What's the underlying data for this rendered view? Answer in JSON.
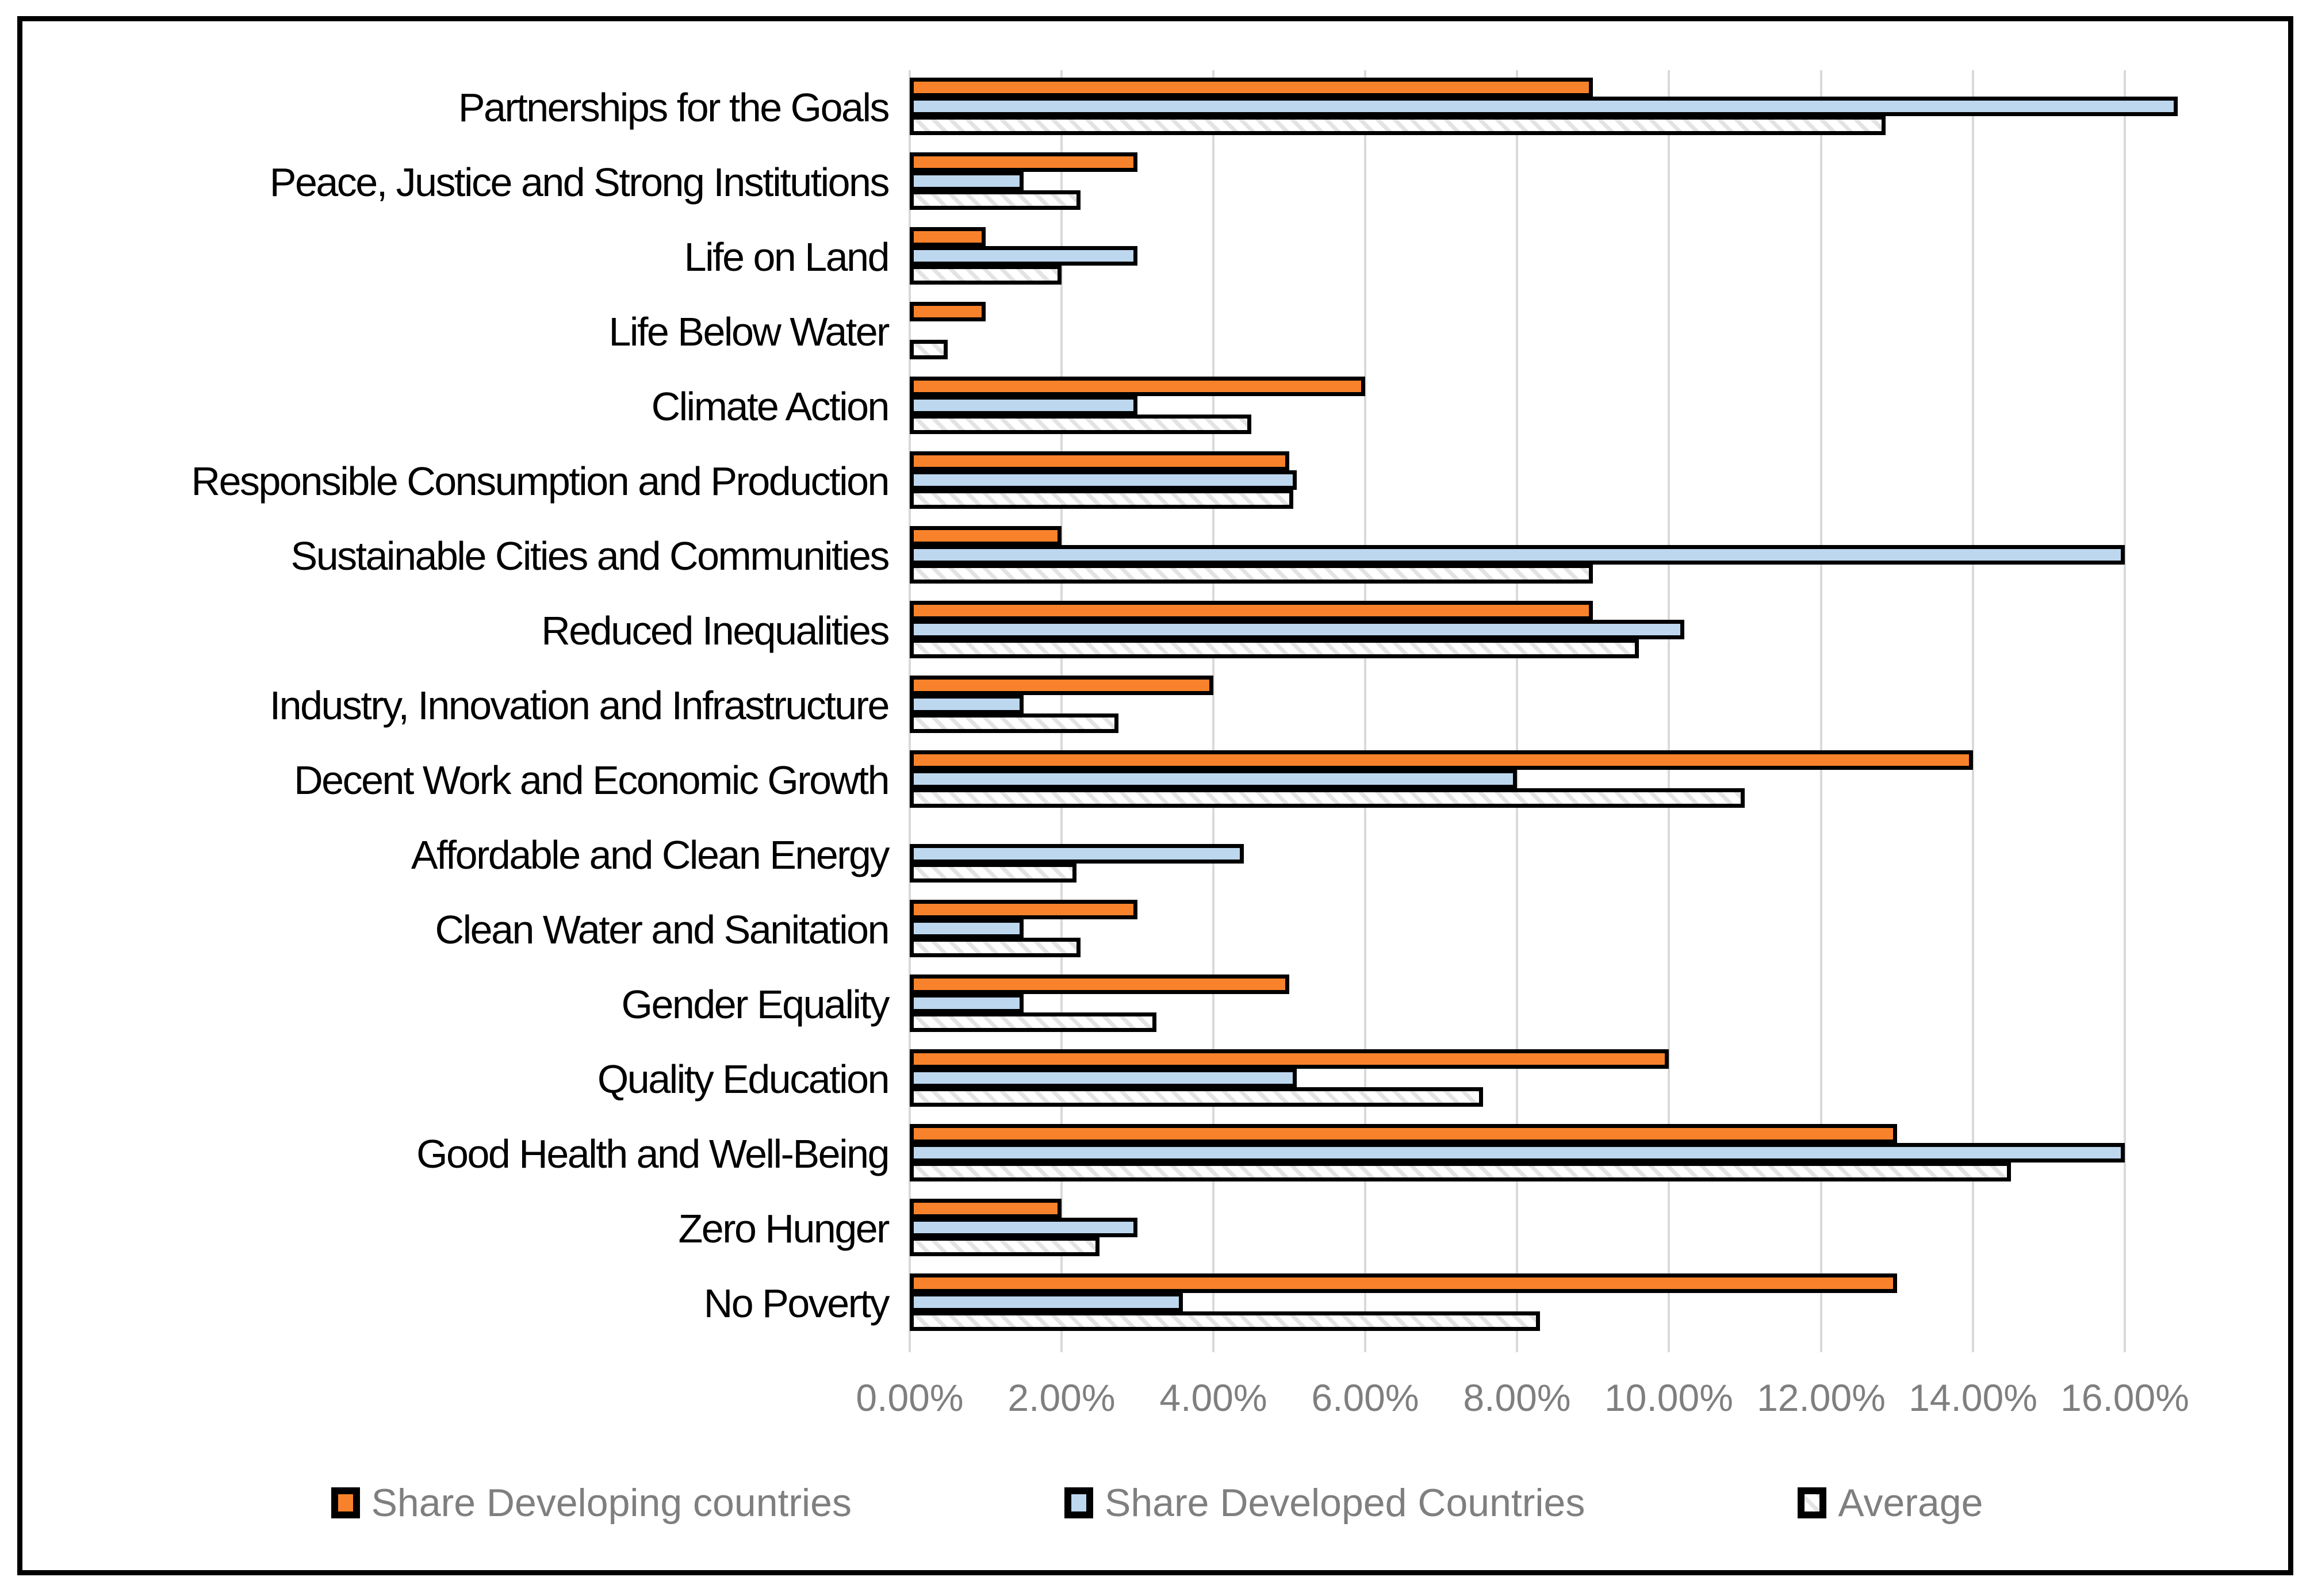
{
  "chart_data": {
    "type": "bar",
    "orientation": "horizontal",
    "title": "",
    "xlabel": "",
    "ylabel": "",
    "grid": true,
    "legend_position": "bottom",
    "categories_top_to_bottom": [
      "Partnerships for the Goals",
      "Peace, Justice and Strong Institutions",
      "Life on Land",
      "Life Below Water",
      "Climate Action",
      "Responsible Consumption and Production",
      "Sustainable Cities and Communities",
      "Reduced Inequalities",
      "Industry, Innovation and Infrastructure",
      "Decent Work and Economic Growth",
      "Affordable and Clean Energy",
      "Clean Water and Sanitation",
      "Gender Equality",
      "Quality Education",
      "Good Health and Well-Being",
      "Zero Hunger",
      "No Poverty"
    ],
    "series": [
      {
        "name": "Share Developing countries",
        "color": "#F8822B",
        "pattern": "solid",
        "values_percent": [
          9.0,
          3.0,
          1.0,
          1.0,
          6.0,
          5.0,
          2.0,
          9.0,
          4.0,
          14.0,
          0.0,
          3.0,
          5.0,
          10.0,
          13.0,
          2.0,
          13.0
        ]
      },
      {
        "name": "Share Developed Countries",
        "color": "#BDD7EE",
        "pattern": "solid",
        "values_percent": [
          16.7,
          1.5,
          3.0,
          0.0,
          3.0,
          5.1,
          16.0,
          10.2,
          1.5,
          8.0,
          4.4,
          1.5,
          1.5,
          5.1,
          16.0,
          3.0,
          3.6
        ]
      },
      {
        "name": "Average",
        "color": "#FFFFFF",
        "pattern": "diagonal-hatch",
        "values_percent": [
          12.85,
          2.25,
          2.0,
          0.5,
          4.5,
          5.05,
          9.0,
          9.6,
          2.75,
          11.0,
          2.2,
          2.25,
          3.25,
          7.55,
          14.5,
          2.5,
          8.3
        ]
      }
    ],
    "x_axis": {
      "min_percent": 0,
      "max_tick_percent": 16,
      "tick_step_percent": 2,
      "tick_labels": [
        "0.00%",
        "2.00%",
        "4.00%",
        "6.00%",
        "8.00%",
        "10.00%",
        "12.00%",
        "14.00%",
        "16.00%"
      ],
      "plot_span_percent": 18.1
    },
    "style": {
      "bar_border_color": "#000000",
      "gridline_color": "#D9D9D9",
      "hatch_stripe_color": "#E3E3E3",
      "axis_text_color": "#7F7F7F",
      "legend_text_color": "#7F7F7F",
      "category_text_color": "#000000",
      "frame_border_color": "#000000"
    }
  }
}
